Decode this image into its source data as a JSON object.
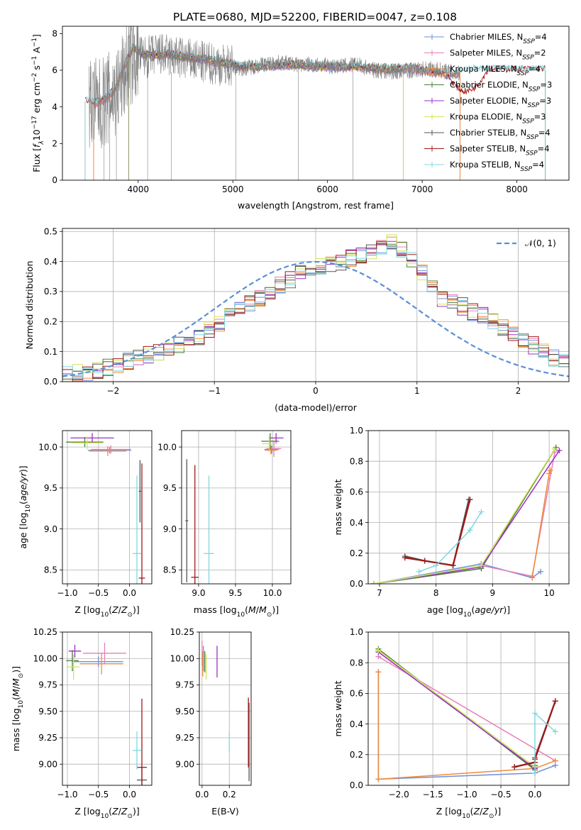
{
  "figure": {
    "title": "PLATE=0680, MJD=52200, FIBERID=0047, z=0.108"
  },
  "palette": {
    "Chabrier MILES": "#6f8fd8",
    "Salpeter MILES": "#e77fb8",
    "Kroupa MILES": "#f08a3a",
    "Chabrier ELODIE": "#4a7d3a",
    "Salpeter ELODIE": "#9b30c8",
    "Kroupa ELODIE": "#cfe65a",
    "Chabrier STELIB": "#555555",
    "Salpeter STELIB": "#a01818",
    "Kroupa STELIB": "#7fd8e0"
  },
  "chart_data": [
    {
      "id": "spectrum",
      "type": "line",
      "xlabel": "wavelength [Angstrom, rest frame]",
      "ylabel": "Flux [f_λ10^-17 erg cm^-2 s^-1 A^-1]",
      "xlim": [
        3200,
        8550
      ],
      "ylim": [
        0,
        8.4
      ],
      "xticks": [
        4000,
        5000,
        6000,
        7000,
        8000
      ],
      "yticks": [
        0,
        2,
        4,
        6,
        8
      ],
      "grid": false,
      "legend_position": "top-right",
      "legend": [
        {
          "name": "Chabrier MILES",
          "nssp": "4"
        },
        {
          "name": "Salpeter MILES",
          "nssp": "2"
        },
        {
          "name": "Kroupa MILES",
          "nssp": "4"
        },
        {
          "name": "Chabrier ELODIE",
          "nssp": "3"
        },
        {
          "name": "Salpeter ELODIE",
          "nssp": "3"
        },
        {
          "name": "Kroupa ELODIE",
          "nssp": "3"
        },
        {
          "name": "Chabrier STELIB",
          "nssp": "4"
        },
        {
          "name": "Salpeter STELIB",
          "nssp": "4"
        },
        {
          "name": "Kroupa STELIB",
          "nssp": "4"
        }
      ],
      "data_line": {
        "color": "#808080",
        "x": [
          3480,
          3600,
          3700,
          3800,
          3900,
          4000,
          4100,
          4200,
          4300,
          4400,
          4500,
          4700,
          4900,
          5100,
          5300,
          5500,
          5700,
          5900,
          6100,
          6300,
          6500,
          6700,
          6900,
          7100,
          7300,
          7400
        ],
        "y": [
          4.2,
          4.1,
          4.5,
          5.0,
          6.5,
          6.8,
          6.7,
          6.9,
          6.8,
          6.7,
          6.6,
          6.4,
          6.3,
          6.1,
          6.3,
          6.4,
          6.3,
          6.3,
          6.2,
          6.3,
          6.0,
          5.9,
          6.0,
          6.1,
          5.9,
          5.8
        ]
      },
      "model_x": [
        3450,
        3550,
        3650,
        3750,
        3850,
        3950,
        4050,
        4150,
        4300,
        4500,
        4700,
        4900,
        5100,
        5300,
        5500,
        5700,
        5900,
        6100,
        6300,
        6500,
        6700,
        6900,
        7100,
        7300,
        7500,
        7700,
        7900,
        8100,
        8300
      ],
      "model_y": [
        4.3,
        4.2,
        4.4,
        4.9,
        6.2,
        7.2,
        6.9,
        6.8,
        6.9,
        6.7,
        6.6,
        6.4,
        6.2,
        6.2,
        6.3,
        6.3,
        6.2,
        6.2,
        6.2,
        6.1,
        6.1,
        6.1,
        5.9,
        5.8,
        6.0,
        6.0,
        6.0,
        6.0,
        6.0
      ]
    },
    {
      "id": "residuals",
      "type": "histogram",
      "xlabel": "(data-model)/error",
      "ylabel": "Normed distribution",
      "xlim": [
        -2.5,
        2.5
      ],
      "ylim": [
        0,
        0.51
      ],
      "xticks": [
        -2,
        -1,
        0,
        1,
        2
      ],
      "yticks": [
        0.0,
        0.1,
        0.2,
        0.3,
        0.4,
        0.5
      ],
      "grid": true,
      "legend_position": "top-right",
      "legend": [
        {
          "name": "𝒩(0, 1)",
          "style": "dashed",
          "color": "#5b8fd8"
        }
      ],
      "bin_width": 0.1,
      "mean_profile": [
        0.02,
        0.03,
        0.03,
        0.04,
        0.05,
        0.06,
        0.07,
        0.08,
        0.09,
        0.1,
        0.11,
        0.12,
        0.14,
        0.15,
        0.17,
        0.19,
        0.22,
        0.24,
        0.26,
        0.28,
        0.3,
        0.32,
        0.34,
        0.36,
        0.37,
        0.38,
        0.39,
        0.4,
        0.41,
        0.42,
        0.43,
        0.45,
        0.46,
        0.44,
        0.4,
        0.36,
        0.32,
        0.28,
        0.27,
        0.25,
        0.23,
        0.22,
        0.2,
        0.18,
        0.16,
        0.14,
        0.12,
        0.1,
        0.08,
        0.07
      ]
    },
    {
      "id": "age-vs-Z",
      "type": "errorbar",
      "xlabel": "Z [log10(Z/Z☉)]",
      "ylabel": "age  [log10(age/yr)]",
      "xlim": [
        -1.08,
        0.36
      ],
      "ylim": [
        8.33,
        10.2
      ],
      "xticks": [
        -1.0,
        -0.5,
        0.0
      ],
      "xtick_labels": [
        "−1.0",
        "−0.5",
        "0.0"
      ],
      "yticks": [
        8.5,
        9.0,
        9.5,
        10.0
      ],
      "grid": true,
      "points": [
        {
          "label": "Chabrier MILES",
          "x": -0.32,
          "xerr": 0.35,
          "y": 9.96,
          "yerr": 0.04
        },
        {
          "label": "Salpeter MILES",
          "x": -0.3,
          "xerr": 0.32,
          "y": 9.97,
          "yerr": 0.05
        },
        {
          "label": "Kroupa MILES",
          "x": -0.35,
          "xerr": 0.3,
          "y": 9.95,
          "yerr": 0.06
        },
        {
          "label": "Chabrier ELODIE",
          "x": -0.72,
          "xerr": 0.3,
          "y": 10.06,
          "yerr": 0.06
        },
        {
          "label": "Salpeter ELODIE",
          "x": -0.6,
          "xerr": 0.35,
          "y": 10.11,
          "yerr": 0.06
        },
        {
          "label": "Kroupa ELODIE",
          "x": -0.68,
          "xerr": 0.25,
          "y": 10.05,
          "yerr": 0.08
        },
        {
          "label": "Chabrier STELIB",
          "x": 0.17,
          "xerr": 0.02,
          "y": 9.46,
          "yerr": 0.38
        },
        {
          "label": "Salpeter STELIB",
          "x": 0.2,
          "xerr": 0.05,
          "y": 8.4,
          "yerr": 1.4
        },
        {
          "label": "Kroupa STELIB",
          "x": 0.12,
          "xerr": 0.07,
          "y": 8.7,
          "yerr": 0.95
        }
      ]
    },
    {
      "id": "age-vs-mass",
      "type": "errorbar",
      "xlabel": "mass [log10(M/M☉)]",
      "ylabel": "",
      "xlim": [
        8.77,
        10.25
      ],
      "ylim": [
        8.33,
        10.2
      ],
      "xticks": [
        9.0,
        9.5,
        10.0
      ],
      "yticks": [
        8.5,
        9.0,
        9.5,
        10.0
      ],
      "grid": true,
      "points": [
        {
          "label": "Chabrier MILES",
          "x": 9.99,
          "xerr": 0.1,
          "y": 9.97,
          "yerr": 0.05
        },
        {
          "label": "Salpeter MILES",
          "x": 10.02,
          "xerr": 0.1,
          "y": 9.98,
          "yerr": 0.1
        },
        {
          "label": "Kroupa MILES",
          "x": 9.98,
          "xerr": 0.08,
          "y": 9.96,
          "yerr": 0.05
        },
        {
          "label": "Chabrier ELODIE",
          "x": 9.97,
          "xerr": 0.12,
          "y": 10.07,
          "yerr": 0.1
        },
        {
          "label": "Salpeter ELODIE",
          "x": 10.05,
          "xerr": 0.1,
          "y": 10.11,
          "yerr": 0.06
        },
        {
          "label": "Kroupa ELODIE",
          "x": 9.96,
          "xerr": 0.1,
          "y": 10.04,
          "yerr": 0.1
        },
        {
          "label": "Chabrier STELIB",
          "x": 8.84,
          "xerr": 0.02,
          "y": 9.1,
          "yerr": 0.75
        },
        {
          "label": "Salpeter STELIB",
          "x": 8.95,
          "xerr": 0.05,
          "y": 8.41,
          "yerr": 1.37
        },
        {
          "label": "Kroupa STELIB",
          "x": 9.14,
          "xerr": 0.07,
          "y": 8.7,
          "yerr": 0.95
        }
      ]
    },
    {
      "id": "weight-vs-age",
      "type": "line",
      "xlabel": "age  [log10(age/yr)]",
      "ylabel": "mass weight",
      "xlim": [
        6.8,
        10.35
      ],
      "ylim": [
        0,
        1
      ],
      "xticks": [
        7,
        8,
        9,
        10
      ],
      "yticks": [
        0.0,
        0.2,
        0.4,
        0.6,
        0.8,
        1.0
      ],
      "grid": true,
      "series": [
        {
          "label": "Chabrier MILES",
          "x": [
            6.9,
            8.8,
            9.7,
            9.85
          ],
          "y": [
            0.0,
            0.13,
            0.04,
            0.08
          ]
        },
        {
          "label": "Salpeter MILES",
          "x": [
            8.8,
            9.7,
            10.1
          ],
          "y": [
            0.12,
            0.05,
            0.86
          ]
        },
        {
          "label": "Kroupa MILES",
          "x": [
            9.7,
            10.0,
            10.02
          ],
          "y": [
            0.04,
            0.72,
            0.74
          ]
        },
        {
          "label": "Chabrier ELODIE",
          "x": [
            6.9,
            8.8,
            10.12
          ],
          "y": [
            0.0,
            0.1,
            0.89
          ]
        },
        {
          "label": "Salpeter ELODIE",
          "x": [
            6.9,
            8.8,
            10.18
          ],
          "y": [
            0.0,
            0.11,
            0.87
          ]
        },
        {
          "label": "Kroupa ELODIE",
          "x": [
            6.9,
            8.8,
            10.1
          ],
          "y": [
            0.0,
            0.12,
            0.88
          ]
        },
        {
          "label": "Chabrier STELIB",
          "x": [
            7.45,
            7.8,
            8.3,
            8.58
          ],
          "y": [
            0.18,
            0.15,
            0.12,
            0.55
          ]
        },
        {
          "label": "Salpeter STELIB",
          "x": [
            7.45,
            7.8,
            8.3,
            8.6
          ],
          "y": [
            0.17,
            0.15,
            0.12,
            0.55
          ]
        },
        {
          "label": "Kroupa STELIB",
          "x": [
            7.7,
            8.0,
            8.6,
            8.8
          ],
          "y": [
            0.08,
            0.12,
            0.35,
            0.47
          ]
        }
      ]
    },
    {
      "id": "mass-vs-Z",
      "type": "errorbar",
      "xlabel": "Z [log10(Z/Z☉)]",
      "ylabel": "mass [log10(M/M☉)]",
      "xlim": [
        -1.08,
        0.36
      ],
      "ylim": [
        8.8,
        10.25
      ],
      "xticks": [
        -1.0,
        -0.5,
        0.0
      ],
      "xtick_labels": [
        "−1.0",
        "−0.5",
        "0.0"
      ],
      "yticks": [
        9.0,
        9.25,
        9.5,
        9.75,
        10.0,
        10.25
      ],
      "grid": true,
      "points": [
        {
          "label": "Chabrier MILES",
          "x": -0.5,
          "xerr": 0.4,
          "y": 9.97,
          "yerr": 0.05
        },
        {
          "label": "Salpeter MILES",
          "x": -0.4,
          "xerr": 0.35,
          "y": 10.05,
          "yerr": 0.1
        },
        {
          "label": "Kroupa MILES",
          "x": -0.45,
          "xerr": 0.35,
          "y": 9.95,
          "yerr": 0.1
        },
        {
          "label": "Chabrier ELODIE",
          "x": -0.92,
          "xerr": 0.1,
          "y": 9.98,
          "yerr": 0.1
        },
        {
          "label": "Salpeter ELODIE",
          "x": -0.88,
          "xerr": 0.1,
          "y": 10.07,
          "yerr": 0.06
        },
        {
          "label": "Kroupa ELODIE",
          "x": -0.9,
          "xerr": 0.1,
          "y": 9.92,
          "yerr": 0.12
        },
        {
          "label": "Chabrier STELIB",
          "x": 0.2,
          "xerr": 0.08,
          "y": 8.85,
          "yerr": 0.13
        },
        {
          "label": "Salpeter STELIB",
          "x": 0.2,
          "xerr": 0.08,
          "y": 8.97,
          "yerr": 0.65
        },
        {
          "label": "Kroupa STELIB",
          "x": 0.12,
          "xerr": 0.07,
          "y": 9.13,
          "yerr": 0.18
        }
      ]
    },
    {
      "id": "mass-vs-EBV",
      "type": "errorbar",
      "xlabel": "E(B-V)",
      "ylabel": "",
      "xlim": [
        -0.02,
        0.36
      ],
      "ylim": [
        8.8,
        10.25
      ],
      "xticks": [
        0.0,
        0.2
      ],
      "yticks": [
        9.0,
        9.25,
        9.5,
        9.75,
        10.0,
        10.25
      ],
      "grid": true,
      "points": [
        {
          "label": "Chabrier MILES",
          "x": 0.01,
          "xerr": 0.0,
          "y": 10.0,
          "yerr": 0.12
        },
        {
          "label": "Salpeter MILES",
          "x": 0.0,
          "xerr": 0.0,
          "y": 10.05,
          "yerr": 0.12
        },
        {
          "label": "Kroupa MILES",
          "x": 0.005,
          "xerr": 0.0,
          "y": 9.95,
          "yerr": 0.12
        },
        {
          "label": "Chabrier ELODIE",
          "x": 0.02,
          "xerr": 0.0,
          "y": 9.97,
          "yerr": 0.1
        },
        {
          "label": "Salpeter ELODIE",
          "x": 0.11,
          "xerr": 0.0,
          "y": 9.97,
          "yerr": 0.15
        },
        {
          "label": "Kroupa ELODIE",
          "x": 0.03,
          "xerr": 0.0,
          "y": 9.92,
          "yerr": 0.12
        },
        {
          "label": "Chabrier STELIB",
          "x": 0.345,
          "xerr": 0.0,
          "y": 9.21,
          "yerr": 0.37
        },
        {
          "label": "Salpeter STELIB",
          "x": 0.34,
          "xerr": 0.0,
          "y": 9.3,
          "yerr": 0.33
        },
        {
          "label": "Kroupa STELIB",
          "x": 0.2,
          "xerr": 0.0,
          "y": 9.21,
          "yerr": 0.1
        }
      ]
    },
    {
      "id": "weight-vs-Z",
      "type": "line",
      "xlabel": "Z [log10(Z/Z☉)]",
      "ylabel": "mass weight",
      "xlim": [
        -2.45,
        0.5
      ],
      "ylim": [
        0,
        1
      ],
      "xticks": [
        -2.0,
        -1.5,
        -1.0,
        -0.5,
        0.0
      ],
      "xtick_labels": [
        "−2.0",
        "−1.5",
        "−1.0",
        "−0.5",
        "0.0"
      ],
      "yticks": [
        0.0,
        0.2,
        0.4,
        0.6,
        0.8,
        1.0
      ],
      "grid": true,
      "series": [
        {
          "label": "Chabrier MILES",
          "x": [
            -2.3,
            -2.3,
            0.0,
            0.3
          ],
          "y": [
            0.74,
            0.04,
            0.08,
            0.13
          ]
        },
        {
          "label": "Salpeter MILES",
          "x": [
            -2.3,
            0.3
          ],
          "y": [
            0.84,
            0.16
          ]
        },
        {
          "label": "Kroupa MILES",
          "x": [
            -2.3,
            -2.3,
            0.0,
            0.3
          ],
          "y": [
            0.74,
            0.04,
            0.11,
            0.16
          ]
        },
        {
          "label": "Chabrier ELODIE",
          "x": [
            -2.3,
            0.0,
            0.0
          ],
          "y": [
            0.89,
            0.1,
            0.13
          ]
        },
        {
          "label": "Salpeter ELODIE",
          "x": [
            -2.3,
            0.0,
            0.0
          ],
          "y": [
            0.87,
            0.11,
            0.12
          ]
        },
        {
          "label": "Kroupa ELODIE",
          "x": [
            -2.3,
            0.0
          ],
          "y": [
            0.88,
            0.12
          ]
        },
        {
          "label": "Chabrier STELIB",
          "x": [
            -0.3,
            0.0,
            0.0,
            0.3
          ],
          "y": [
            0.12,
            0.15,
            0.18,
            0.55
          ]
        },
        {
          "label": "Salpeter STELIB",
          "x": [
            -0.3,
            0.0,
            0.0,
            0.3
          ],
          "y": [
            0.12,
            0.15,
            0.17,
            0.55
          ]
        },
        {
          "label": "Kroupa STELIB",
          "x": [
            0.0,
            0.0,
            0.3
          ],
          "y": [
            0.08,
            0.47,
            0.35
          ]
        }
      ]
    }
  ]
}
